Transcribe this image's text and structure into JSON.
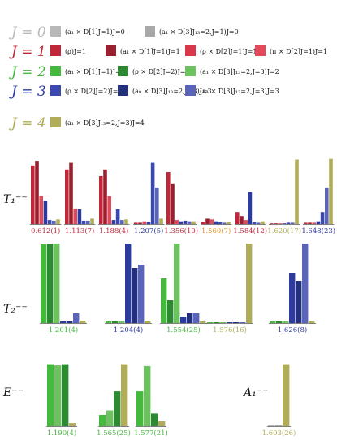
{
  "colors": {
    "J0": "#b8b8b8",
    "J1": "#c0283a",
    "J2": "#45b83e",
    "J3": "#2d3a9e",
    "J4": "#b0ac58",
    "orange_mass": "#e8902a",
    "baseline": "#555555"
  },
  "legend": {
    "rows": [
      {
        "label": "J = 0",
        "color_key": "J0",
        "entries": [
          {
            "text": "(a₁ × D[1]J=1)J=0",
            "color": "#b8b8b8"
          },
          {
            "text": "(a₁ × D[3]J₁₃=2,J=1)J=0",
            "color": "#a8a8a8"
          }
        ]
      },
      {
        "label": "J = 1",
        "color_key": "J1",
        "entries": [
          {
            "text": "(ρ)J=1",
            "color": "#c0283a"
          },
          {
            "text": "(a₁ × D[1]J=1)J=1",
            "color": "#9a2030"
          },
          {
            "text": "(ρ × D[2]J=1)J=1",
            "color": "#d8384a"
          },
          {
            "text": "(π × D[2]J=1)J=1",
            "color": "#e04a5a"
          }
        ]
      },
      {
        "label": "J = 2",
        "color_key": "J2",
        "entries": [
          {
            "text": "(a₁ × D[1]J=1)J=2",
            "color": "#45b83e"
          },
          {
            "text": "(ρ × D[2]J=2)J=2",
            "color": "#2e8a32"
          },
          {
            "text": "(a₁ × D[3]J₁₃=2,J=3)J=2",
            "color": "#6cc25e"
          }
        ]
      },
      {
        "label": "J = 3",
        "color_key": "J3",
        "entries": [
          {
            "text": "(ρ × D[2]J=2)J=3",
            "color": "#3a48b0"
          },
          {
            "text": "(a₀ × D[3]J₁₃=2,J=3)J=3",
            "color": "#23307e"
          },
          {
            "text": "(a₁ × D[3]J₁₃=2,J=3)J=3",
            "color": "#5a64b8"
          }
        ]
      },
      {
        "label": "J = 4",
        "color_key": "J4",
        "entries": [
          {
            "text": "(a₁ × D[3]J₁₃=2,J=3)J=4",
            "color": "#b0ac58"
          }
        ]
      }
    ]
  },
  "chart_data": [
    {
      "type": "bar",
      "panel": "T₁⁻⁻",
      "ylim": [
        0,
        1
      ],
      "groups": [
        {
          "mass": "0.612(1)",
          "mass_color_key": "J1",
          "values": [
            0.88,
            0.95,
            0.42,
            0.35,
            0.06,
            0.05,
            0.07
          ]
        },
        {
          "mass": "1.113(7)",
          "mass_color_key": "J1",
          "values": [
            0.82,
            0.92,
            0.23,
            0.22,
            0.05,
            0.05,
            0.08
          ]
        },
        {
          "mass": "1.188(4)",
          "mass_color_key": "J1",
          "values": [
            0.72,
            0.82,
            0.42,
            0.06,
            0.22,
            0.06,
            0.07
          ]
        },
        {
          "mass": "1.207(5)",
          "mass_color_key": "J3",
          "values": [
            0.02,
            0.02,
            0.04,
            0.03,
            0.92,
            0.55,
            0.08
          ]
        },
        {
          "mass": "1.356(10)",
          "mass_color_key": "J1",
          "values": [
            0.78,
            0.6,
            0.06,
            0.04,
            0.05,
            0.04,
            0.04
          ]
        },
        {
          "mass": "1.560(7)",
          "mass_color_key": "orange_mass",
          "values": [
            0.03,
            0.08,
            0.07,
            0.04,
            0.03,
            0.02,
            0.03
          ]
        },
        {
          "mass": "1.584(12)",
          "mass_color_key": "J1",
          "values": [
            0.18,
            0.12,
            0.06,
            0.48,
            0.03,
            0.02,
            0.04
          ]
        },
        {
          "mass": "1.620(17)",
          "mass_color_key": "J4",
          "values": [
            0.01,
            0.01,
            0.01,
            0.01,
            0.02,
            0.02,
            0.97
          ]
        },
        {
          "mass": "1.648(23)",
          "mass_color_key": "J3",
          "values": [
            0.02,
            0.02,
            0.02,
            0.04,
            0.18,
            0.55,
            0.98
          ]
        }
      ]
    },
    {
      "type": "bar",
      "panel": "T₂⁻⁻",
      "ylim": [
        0,
        1
      ],
      "groups": [
        {
          "mass": "1.201(4)",
          "mass_color_key": "J2",
          "values": [
            0.98,
            0.98,
            0.98,
            0.02,
            0.02,
            0.12,
            0.03
          ]
        },
        {
          "mass": "1.204(4)",
          "mass_color_key": "J3",
          "values": [
            0.02,
            0.02,
            0.02,
            0.98,
            0.68,
            0.72,
            0.02
          ]
        },
        {
          "mass": "1.554(25)",
          "mass_color_key": "J2",
          "values": [
            0.55,
            0.28,
            0.98,
            0.08,
            0.12,
            0.12,
            0.02
          ]
        },
        {
          "mass": "1.576(16)",
          "mass_color_key": "J4",
          "values": [
            0.01,
            0.01,
            0.01,
            0.01,
            0.01,
            0.01,
            0.98
          ]
        },
        {
          "mass": "1.626(8)",
          "mass_color_key": "J3",
          "values": [
            0.02,
            0.02,
            0.02,
            0.62,
            0.52,
            0.98,
            0.02
          ]
        }
      ]
    },
    {
      "type": "bar",
      "panel": "E⁻⁻",
      "ylim": [
        0,
        1
      ],
      "groups": [
        {
          "mass": "1.190(4)",
          "mass_color_key": "J2",
          "values": [
            0.98,
            0.96,
            0.98,
            0.05
          ]
        },
        {
          "mass": "1.565(25)",
          "mass_color_key": "J2",
          "values": [
            0.18,
            0.25,
            0.55,
            0.98
          ]
        },
        {
          "mass": "1.577(21)",
          "mass_color_key": "J2",
          "values": [
            0.55,
            0.95,
            0.2,
            0.08
          ]
        }
      ]
    },
    {
      "type": "bar",
      "panel": "A₁⁻⁻",
      "ylim": [
        0,
        1
      ],
      "groups": [
        {
          "mass": "1.603(26)",
          "mass_color_key": "J4",
          "values": [
            0.02,
            0.02,
            0.98
          ]
        }
      ]
    }
  ]
}
